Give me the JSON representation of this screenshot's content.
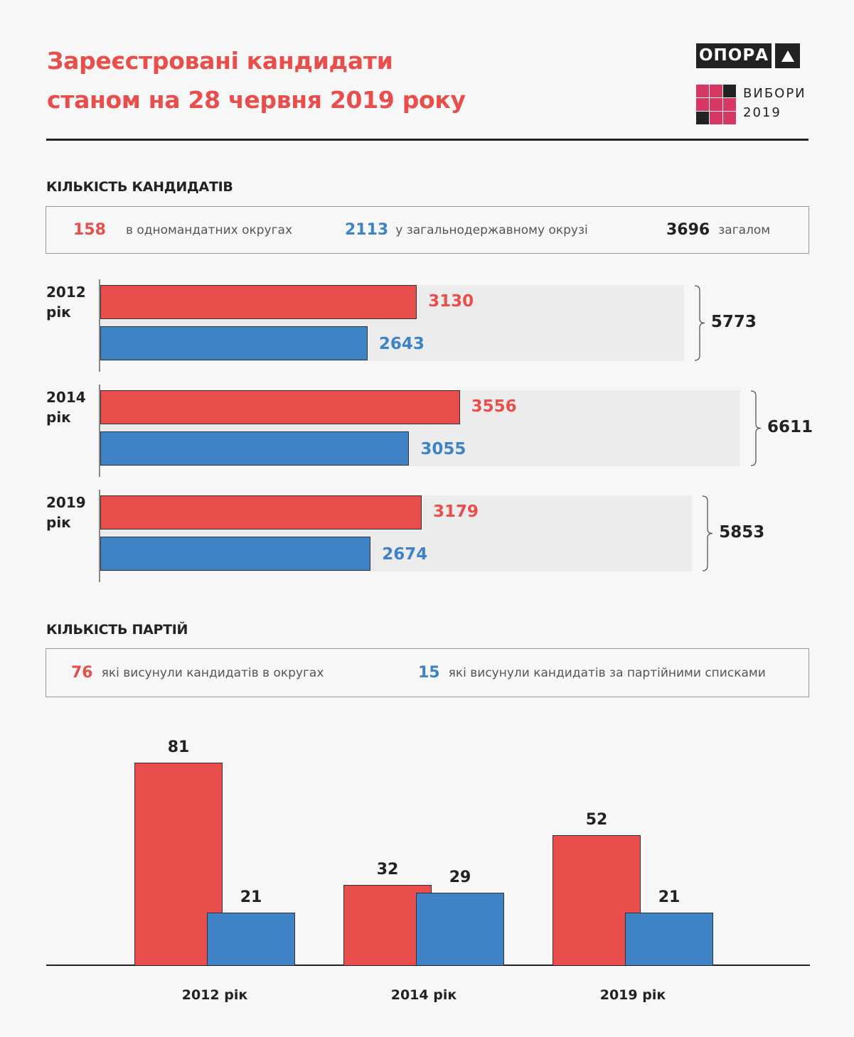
{
  "header": {
    "title_line1": "Зареєстровані кандидати",
    "title_line2": "станом на 28 червня 2019 року",
    "logo_opora": "ОПОРА",
    "logo_vybory_line1": "ВИБОРИ",
    "logo_vybory_line2": "2019"
  },
  "colors": {
    "red": "#e84e4b",
    "blue": "#3e83c5",
    "pink": "#d63864",
    "dark": "#222222",
    "grey_bg": "#ececec"
  },
  "candidates": {
    "heading": "КІЛЬКІСТЬ КАНДИДАТІВ",
    "legend": [
      {
        "value": "158",
        "label": "в одномандатних округах",
        "color": "red"
      },
      {
        "value": "2113",
        "label": "у загальнодержавному окрузі",
        "color": "blue"
      },
      {
        "value": "3696",
        "label": "загалом",
        "color": "dark"
      }
    ]
  },
  "parties": {
    "heading": "КІЛЬКІСТЬ ПАРТІЙ",
    "legend": [
      {
        "value": "76",
        "label": "які висунули кандидатів в округах",
        "color": "red"
      },
      {
        "value": "15",
        "label": "які висунули кандидатів за партійними списками",
        "color": "blue"
      }
    ]
  },
  "chart_data": [
    {
      "type": "bar",
      "orientation": "horizontal",
      "title": "КІЛЬКІСТЬ КАНДИДАТІВ",
      "categories": [
        "2012 рік",
        "2014 рік",
        "2019 рік"
      ],
      "category_years": [
        "2012",
        "2014",
        "2019"
      ],
      "category_suffix": "рік",
      "series": [
        {
          "name": "в одномандатних округах",
          "color": "red",
          "values": [
            3130,
            3556,
            3179
          ]
        },
        {
          "name": "у загальнодержавному окрузі",
          "color": "blue",
          "values": [
            2643,
            3055,
            2674
          ]
        }
      ],
      "totals": [
        5773,
        6611,
        5853
      ],
      "xlim": [
        0,
        6611
      ]
    },
    {
      "type": "bar",
      "orientation": "vertical",
      "title": "КІЛЬКІСТЬ ПАРТІЙ",
      "categories": [
        "2012 рік",
        "2014 рік",
        "2019 рік"
      ],
      "series": [
        {
          "name": "які висунули кандидатів в округах",
          "color": "red",
          "values": [
            81,
            32,
            52
          ]
        },
        {
          "name": "які висунули кандидатів за партійними списками",
          "color": "blue",
          "values": [
            21,
            29,
            21
          ]
        }
      ],
      "ylim": [
        0,
        81
      ],
      "grid": false
    }
  ]
}
